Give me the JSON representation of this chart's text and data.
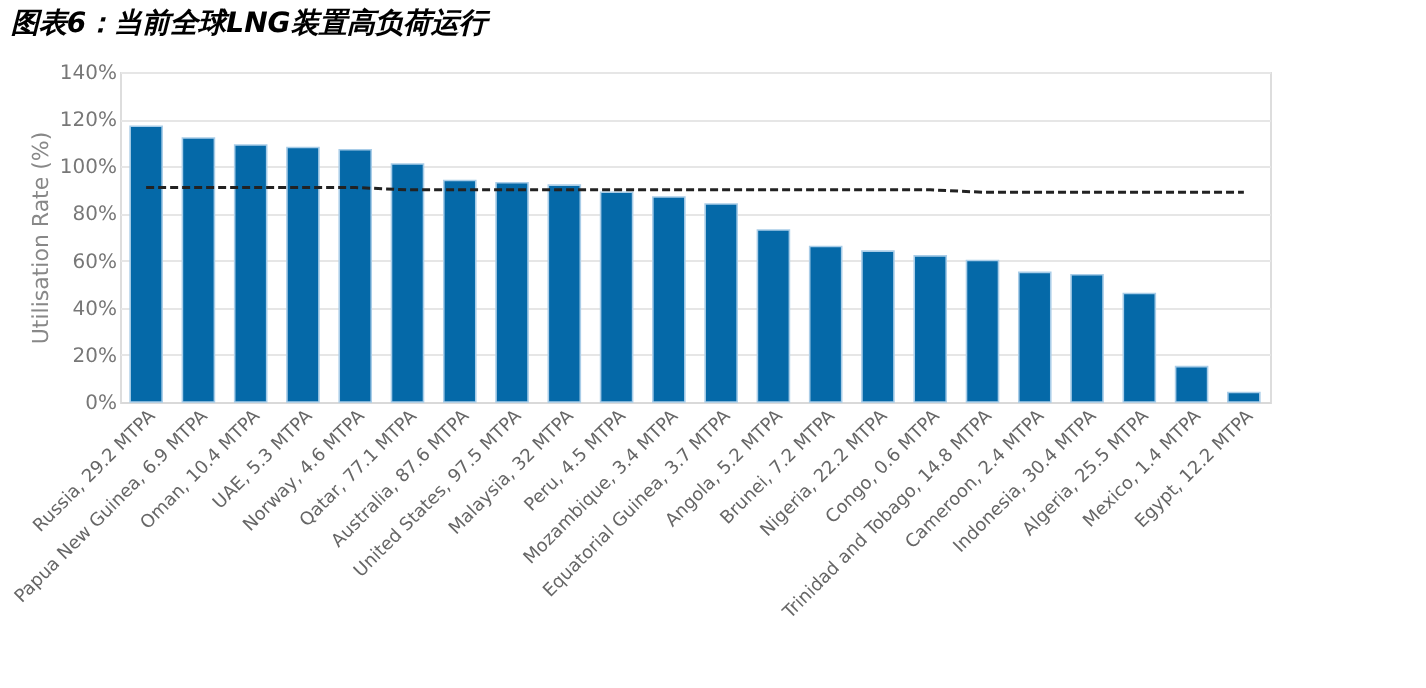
{
  "chart_data": {
    "type": "bar",
    "title": "图表6：当前全球LNG装置高负荷运行",
    "ylabel": "Utilisation Rate (%)",
    "categories": [
      "Russia, 29.2 MTPA",
      "Papua New Guinea, 6.9 MTPA",
      "Oman, 10.4 MTPA",
      "UAE, 5.3 MTPA",
      "Norway, 4.6 MTPA",
      "Qatar, 77.1 MTPA",
      "Australia, 87.6 MTPA",
      "United States, 97.5 MTPA",
      "Malaysia, 32 MTPA",
      "Peru, 4.5 MTPA",
      "Mozambique, 3.4 MTPA",
      "Equatorial Guinea, 3.7 MTPA",
      "Angola, 5.2 MTPA",
      "Brunei, 7.2 MTPA",
      "Nigeria, 22.2 MTPA",
      "Congo, 0.6 MTPA",
      "Trinidad and Tobago, 14.8 MTPA",
      "Cameroon, 2.4 MTPA",
      "Indonesia, 30.4 MTPA",
      "Algeria, 25.5 MTPA",
      "Mexico, 1.4 MTPA",
      "Egypt, 12.2 MTPA"
    ],
    "series": [
      {
        "color": "#0569a8",
        "values": [
          117,
          112,
          109,
          108,
          107,
          101,
          94,
          93,
          92,
          89,
          87,
          84,
          73,
          66,
          64,
          62,
          60,
          55,
          54,
          46,
          15,
          4
        ]
      },
      {
        "type": "line",
        "color": "#222222",
        "line_style": "dashed",
        "marker": "none",
        "values": [
          91,
          91,
          91,
          91,
          91,
          90,
          90,
          90,
          90,
          90,
          90,
          90,
          90,
          90,
          90,
          90,
          89,
          89,
          89,
          89,
          89,
          89
        ]
      }
    ],
    "ylim": [
      0,
      140
    ],
    "yticks": [
      {
        "value": 0,
        "label": "0%"
      },
      {
        "value": 20,
        "label": "20%"
      },
      {
        "value": 40,
        "label": "40%"
      },
      {
        "value": 60,
        "label": "60%"
      },
      {
        "value": 80,
        "label": "80%"
      },
      {
        "value": 100,
        "label": "100%"
      },
      {
        "value": 120,
        "label": "120%"
      },
      {
        "value": 140,
        "label": "140%"
      }
    ],
    "grid": "y"
  }
}
